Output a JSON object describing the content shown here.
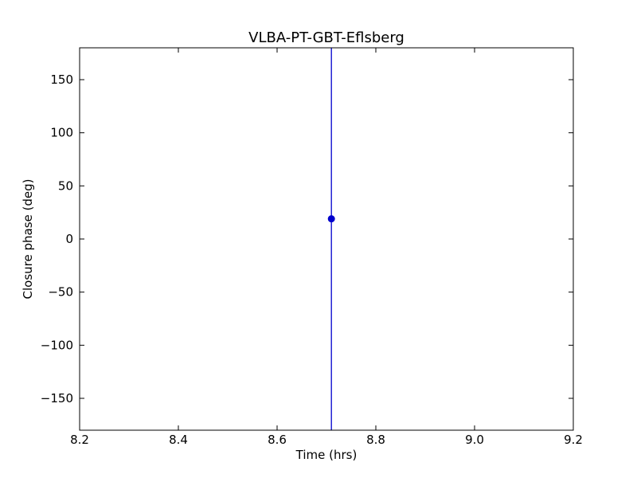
{
  "chart_data": {
    "type": "scatter",
    "title": "VLBA-PT-GBT-Eflsberg",
    "xlabel": "Time (hrs)",
    "ylabel": "Closure phase (deg)",
    "xlim": [
      8.2,
      9.2
    ],
    "ylim": [
      -180,
      180
    ],
    "xticks": [
      8.2,
      8.4,
      8.6,
      8.8,
      9.0,
      9.2
    ],
    "xtick_labels": [
      "8.2",
      "8.4",
      "8.6",
      "8.8",
      "9.0",
      "9.2"
    ],
    "yticks": [
      -150,
      -100,
      -50,
      0,
      50,
      100,
      150
    ],
    "ytick_labels": [
      "−150",
      "−100",
      "−50",
      "0",
      "50",
      "100",
      "150"
    ],
    "grid": false,
    "series": [
      {
        "points": [
          {
            "x": 8.71,
            "y": 19,
            "yerr_low": -180,
            "yerr_high": 180
          }
        ],
        "color": "#0000cc",
        "marker": "circle"
      }
    ]
  }
}
